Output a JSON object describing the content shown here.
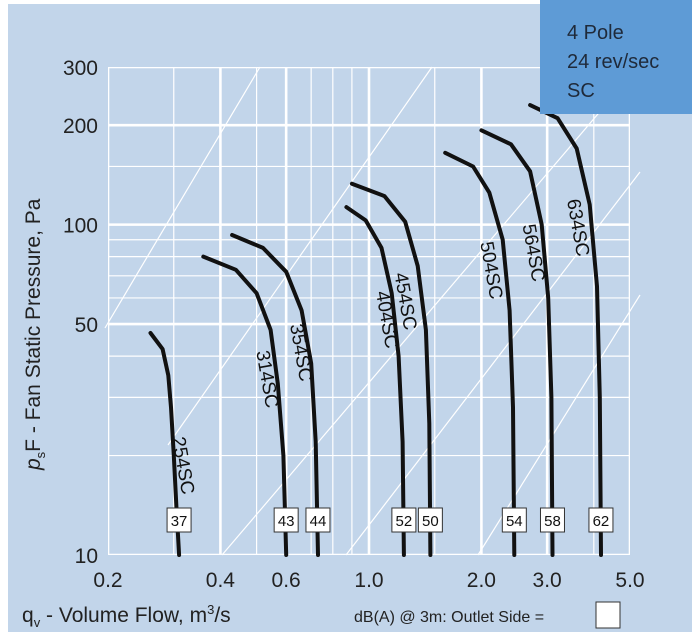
{
  "chart_data": {
    "type": "line",
    "title": "",
    "xlabel": {
      "pre": "q",
      "sub": "v",
      "post": " - Volume Flow, m",
      "sup": "3",
      "end": "/s"
    },
    "ylabel": {
      "pre": "p",
      "sub": "s",
      "post": "F - Fan Static Pressure, Pa"
    },
    "xscale": "log",
    "yscale": "log",
    "xlim": [
      0.2,
      5.0
    ],
    "ylim": [
      10,
      300
    ],
    "xticks": [
      {
        "value": 0.2,
        "label": "0.2"
      },
      {
        "value": 0.4,
        "label": "0.4"
      },
      {
        "value": 0.6,
        "label": "0.6"
      },
      {
        "value": 1.0,
        "label": "1.0"
      },
      {
        "value": 2.0,
        "label": "2.0"
      },
      {
        "value": 3.0,
        "label": "3.0"
      },
      {
        "value": 5.0,
        "label": "5.0"
      }
    ],
    "yticks": [
      {
        "value": 10,
        "label": "10"
      },
      {
        "value": 50,
        "label": "50"
      },
      {
        "value": 100,
        "label": "100"
      },
      {
        "value": 200,
        "label": "200"
      },
      {
        "value": 300,
        "label": "300"
      }
    ],
    "grid": true,
    "info_box": [
      "4 Pole",
      "24 rev/sec",
      "SC"
    ],
    "db_note": "dB(A) @ 3m:  Outlet  Side =",
    "colors": {
      "background": "#c2d5ea",
      "grid": "#ffffff",
      "curve": "#111111",
      "info_box": "#5e9bd6"
    },
    "series": [
      {
        "name": "254SC",
        "db": "37",
        "x": [
          0.26,
          0.28,
          0.29,
          0.295,
          0.3,
          0.305,
          0.31
        ],
        "y": [
          47,
          42,
          35,
          28,
          20,
          14,
          10
        ]
      },
      {
        "name": "314SC",
        "db": "43",
        "x": [
          0.36,
          0.44,
          0.5,
          0.545,
          0.57,
          0.59,
          0.6
        ],
        "y": [
          80,
          73,
          62,
          48,
          33,
          20,
          10
        ]
      },
      {
        "name": "354SC",
        "db": "44",
        "x": [
          0.43,
          0.52,
          0.6,
          0.66,
          0.7,
          0.72,
          0.73
        ],
        "y": [
          93,
          85,
          72,
          55,
          38,
          22,
          10
        ]
      },
      {
        "name": "404SC",
        "db": "52",
        "x": [
          0.87,
          0.98,
          1.08,
          1.15,
          1.2,
          1.23,
          1.24
        ],
        "y": [
          113,
          103,
          85,
          62,
          40,
          22,
          10
        ]
      },
      {
        "name": "454SC",
        "db": "50",
        "x": [
          0.9,
          1.1,
          1.25,
          1.35,
          1.42,
          1.45,
          1.46
        ],
        "y": [
          133,
          122,
          102,
          75,
          48,
          25,
          10
        ]
      },
      {
        "name": "504SC",
        "db": "54",
        "x": [
          1.6,
          1.9,
          2.1,
          2.28,
          2.38,
          2.43,
          2.45
        ],
        "y": [
          165,
          150,
          125,
          90,
          55,
          28,
          10
        ]
      },
      {
        "name": "564SC",
        "db": "58",
        "x": [
          2.0,
          2.4,
          2.7,
          2.9,
          3.02,
          3.08,
          3.1
        ],
        "y": [
          193,
          175,
          145,
          100,
          60,
          30,
          10
        ]
      },
      {
        "name": "634SC",
        "db": "62",
        "x": [
          2.7,
          3.2,
          3.6,
          3.9,
          4.08,
          4.15,
          4.18
        ],
        "y": [
          230,
          210,
          170,
          115,
          65,
          30,
          10
        ]
      }
    ]
  }
}
